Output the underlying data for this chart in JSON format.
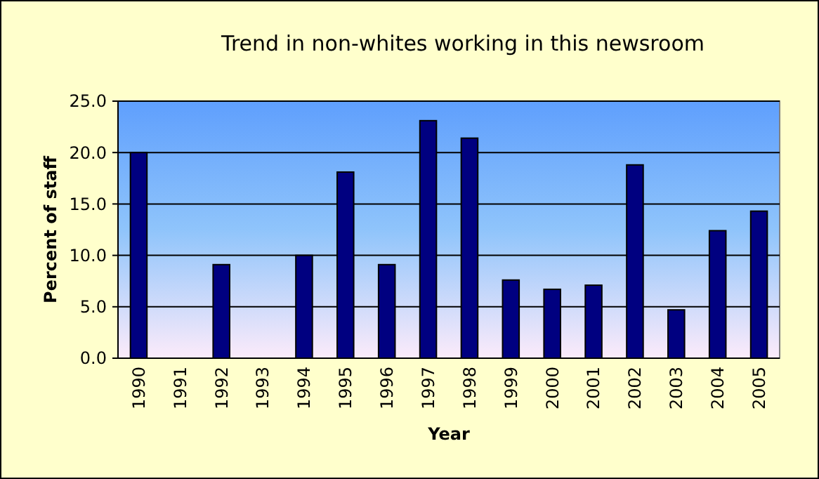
{
  "chart_data": {
    "type": "bar",
    "title": "Trend in non-whites working in this newsroom",
    "xlabel": "Year",
    "ylabel": "Percent of staff",
    "categories": [
      "1990",
      "1991",
      "1992",
      "1993",
      "1994",
      "1995",
      "1996",
      "1997",
      "1998",
      "1999",
      "2000",
      "2001",
      "2002",
      "2003",
      "2004",
      "2005"
    ],
    "values": [
      20.0,
      null,
      9.1,
      null,
      10.0,
      18.1,
      9.1,
      23.1,
      21.4,
      7.6,
      6.7,
      7.1,
      18.8,
      4.7,
      12.4,
      14.3
    ],
    "color": "#000080",
    "ylim": [
      0,
      25
    ],
    "yticks": [
      {
        "value": 0,
        "label": "0.0"
      },
      {
        "value": 5,
        "label": "5.0"
      },
      {
        "value": 10,
        "label": "10.0"
      },
      {
        "value": 15,
        "label": "15.0"
      },
      {
        "value": 20,
        "label": "20.0"
      },
      {
        "value": 25,
        "label": "25.0"
      }
    ],
    "grid": "y"
  }
}
